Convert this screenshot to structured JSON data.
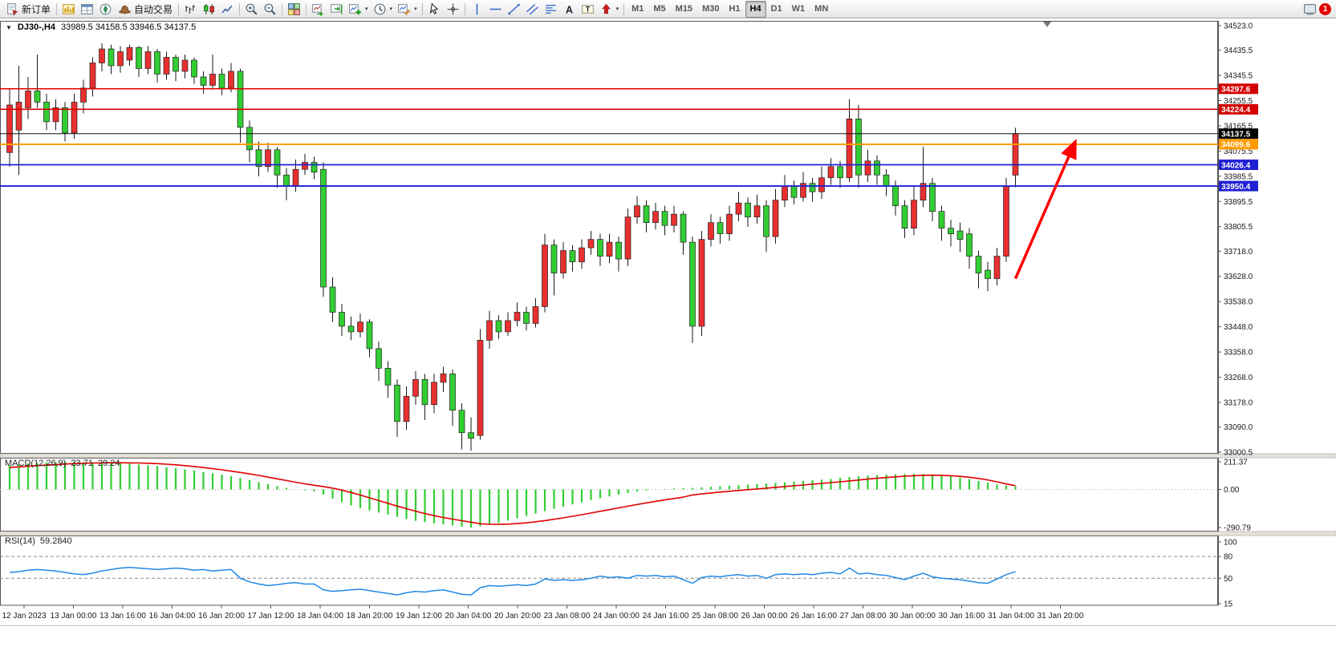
{
  "toolbar": {
    "new_order_label": "新订单",
    "autotrading_label": "自动交易",
    "timeframes": [
      "M1",
      "M5",
      "M15",
      "M30",
      "H1",
      "H4",
      "D1",
      "W1",
      "MN"
    ],
    "active_timeframe": "H4",
    "notification_badge": "1"
  },
  "glyphs": {
    "dropdown": "▾",
    "chart_menu": "▼",
    "text_tool": "A",
    "label_tool": "T"
  },
  "chart": {
    "symbol": "DJ30-,H4",
    "ohlc": "33989.5 34158.5 33946.5 34137.5"
  },
  "price_axis": {
    "labels": [
      "34523.0",
      "34435.5",
      "34345.5",
      "34255.5",
      "34165.5",
      "34075.5",
      "33985.5",
      "33895.5",
      "33805.5",
      "33718.0",
      "33628.0",
      "33538.0",
      "33448.0",
      "33358.0",
      "33268.0",
      "33178.0",
      "33090.0",
      "33000.5"
    ],
    "tags": [
      {
        "value": "34297.6",
        "color": "#d40000"
      },
      {
        "value": "34224.4",
        "color": "#d40000"
      },
      {
        "value": "34137.5",
        "color": "#000000"
      },
      {
        "value": "34099.6",
        "color": "#ff9b00"
      },
      {
        "value": "34026.4",
        "color": "#2121d4"
      },
      {
        "value": "33950.4",
        "color": "#2121d4"
      }
    ]
  },
  "time_axis": {
    "labels": [
      "12 Jan 2023",
      "13 Jan 00:00",
      "13 Jan 16:00",
      "16 Jan 04:00",
      "16 Jan 20:00",
      "17 Jan 12:00",
      "18 Jan 04:00",
      "18 Jan 20:00",
      "19 Jan 12:00",
      "20 Jan 04:00",
      "20 Jan 20:00",
      "23 Jan 08:00",
      "24 Jan 00:00",
      "24 Jan 16:00",
      "25 Jan 08:00",
      "26 Jan 00:00",
      "26 Jan 16:00",
      "27 Jan 08:00",
      "30 Jan 00:00",
      "30 Jan 16:00",
      "31 Jan 04:00",
      "31 Jan 20:00"
    ]
  },
  "macd": {
    "title": "MACD(12,26,9)",
    "value_main": "23.71",
    "value_signal": "29.24",
    "axis_labels": [
      "211.37",
      "0.00",
      "-290.79"
    ]
  },
  "rsi": {
    "title": "RSI(14)",
    "value": "59.2840",
    "axis_labels": [
      "100",
      "80",
      "50",
      "15"
    ]
  },
  "chart_data": {
    "type": "candlestick",
    "symbol": "DJ30-",
    "timeframe": "H4",
    "title": "DJ30-,H4 33989.5 34158.5 33946.5 34137.5",
    "ylim": [
      33000.5,
      34523.0
    ],
    "up_color": "#e93030",
    "down_color": "#32cd32",
    "candles": [
      [
        34070,
        34300,
        34020,
        34240
      ],
      [
        34150,
        34380,
        33990,
        34250
      ],
      [
        34230,
        34340,
        34190,
        34290
      ],
      [
        34290,
        34420,
        34230,
        34250
      ],
      [
        34250,
        34280,
        34150,
        34180
      ],
      [
        34180,
        34260,
        34150,
        34230
      ],
      [
        34230,
        34250,
        34110,
        34140
      ],
      [
        34140,
        34280,
        34120,
        34250
      ],
      [
        34250,
        34330,
        34210,
        34300
      ],
      [
        34300,
        34410,
        34270,
        34390
      ],
      [
        34390,
        34460,
        34360,
        34440
      ],
      [
        34440,
        34455,
        34350,
        34380
      ],
      [
        34380,
        34450,
        34355,
        34430
      ],
      [
        34400,
        34455,
        34380,
        34445
      ],
      [
        34445,
        34450,
        34340,
        34370
      ],
      [
        34370,
        34450,
        34350,
        34430
      ],
      [
        34430,
        34440,
        34320,
        34350
      ],
      [
        34350,
        34430,
        34330,
        34410
      ],
      [
        34410,
        34420,
        34325,
        34360
      ],
      [
        34360,
        34420,
        34335,
        34400
      ],
      [
        34400,
        34410,
        34315,
        34340
      ],
      [
        34340,
        34360,
        34280,
        34310
      ],
      [
        34310,
        34420,
        34295,
        34350
      ],
      [
        34350,
        34370,
        34275,
        34300
      ],
      [
        34300,
        34390,
        34285,
        34360
      ],
      [
        34360,
        34370,
        34105,
        34160
      ],
      [
        34160,
        34185,
        34035,
        34080
      ],
      [
        34080,
        34110,
        33985,
        34020
      ],
      [
        34020,
        34105,
        34000,
        34080
      ],
      [
        34080,
        34090,
        33945,
        33990
      ],
      [
        33990,
        34015,
        33900,
        33950
      ],
      [
        33950,
        34045,
        33930,
        34010
      ],
      [
        34010,
        34065,
        33990,
        34035
      ],
      [
        34035,
        34055,
        33975,
        34000
      ],
      [
        34010,
        34035,
        33555,
        33590
      ],
      [
        33590,
        33625,
        33465,
        33500
      ],
      [
        33500,
        33530,
        33415,
        33450
      ],
      [
        33450,
        33485,
        33400,
        33430
      ],
      [
        33430,
        33495,
        33410,
        33465
      ],
      [
        33465,
        33475,
        33340,
        33370
      ],
      [
        33370,
        33395,
        33255,
        33300
      ],
      [
        33300,
        33325,
        33195,
        33240
      ],
      [
        33240,
        33260,
        33055,
        33110
      ],
      [
        33110,
        33235,
        33080,
        33200
      ],
      [
        33200,
        33290,
        33170,
        33260
      ],
      [
        33260,
        33280,
        33115,
        33170
      ],
      [
        33170,
        33280,
        33140,
        33250
      ],
      [
        33250,
        33305,
        33215,
        33280
      ],
      [
        33280,
        33295,
        33095,
        33150
      ],
      [
        33150,
        33175,
        33010,
        33070
      ],
      [
        33070,
        33125,
        33005,
        33050
      ],
      [
        33060,
        33440,
        33045,
        33400
      ],
      [
        33400,
        33505,
        33370,
        33470
      ],
      [
        33470,
        33490,
        33405,
        33430
      ],
      [
        33430,
        33500,
        33415,
        33470
      ],
      [
        33470,
        33535,
        33450,
        33500
      ],
      [
        33500,
        33520,
        33435,
        33460
      ],
      [
        33460,
        33550,
        33445,
        33520
      ],
      [
        33520,
        33780,
        33500,
        33740
      ],
      [
        33740,
        33760,
        33560,
        33640
      ],
      [
        33640,
        33750,
        33620,
        33720
      ],
      [
        33720,
        33740,
        33645,
        33680
      ],
      [
        33680,
        33760,
        33655,
        33730
      ],
      [
        33730,
        33790,
        33705,
        33760
      ],
      [
        33760,
        33780,
        33665,
        33700
      ],
      [
        33700,
        33780,
        33675,
        33750
      ],
      [
        33750,
        33770,
        33645,
        33690
      ],
      [
        33690,
        33870,
        33665,
        33840
      ],
      [
        33840,
        33915,
        33815,
        33880
      ],
      [
        33880,
        33900,
        33785,
        33820
      ],
      [
        33820,
        33890,
        33795,
        33860
      ],
      [
        33860,
        33880,
        33775,
        33810
      ],
      [
        33810,
        33880,
        33785,
        33850
      ],
      [
        33850,
        33860,
        33705,
        33750
      ],
      [
        33750,
        33770,
        33390,
        33450
      ],
      [
        33450,
        33790,
        33415,
        33760
      ],
      [
        33760,
        33850,
        33735,
        33820
      ],
      [
        33820,
        33840,
        33745,
        33780
      ],
      [
        33780,
        33880,
        33755,
        33850
      ],
      [
        33850,
        33930,
        33825,
        33890
      ],
      [
        33890,
        33910,
        33805,
        33840
      ],
      [
        33840,
        33920,
        33815,
        33880
      ],
      [
        33880,
        33900,
        33715,
        33770
      ],
      [
        33770,
        33940,
        33745,
        33900
      ],
      [
        33900,
        33990,
        33875,
        33950
      ],
      [
        33950,
        33970,
        33885,
        33910
      ],
      [
        33910,
        34000,
        33895,
        33960
      ],
      [
        33960,
        33980,
        33895,
        33930
      ],
      [
        33930,
        34020,
        33905,
        33980
      ],
      [
        33980,
        34050,
        33955,
        34020
      ],
      [
        34020,
        34040,
        33945,
        33980
      ],
      [
        33980,
        34260,
        33965,
        34190
      ],
      [
        34190,
        34240,
        33945,
        33990
      ],
      [
        33990,
        34080,
        33965,
        34040
      ],
      [
        34040,
        34060,
        33955,
        33990
      ],
      [
        33990,
        34010,
        33915,
        33950
      ],
      [
        33950,
        33970,
        33845,
        33880
      ],
      [
        33880,
        33900,
        33765,
        33800
      ],
      [
        33800,
        33950,
        33775,
        33900
      ],
      [
        33900,
        34090,
        33875,
        33960
      ],
      [
        33960,
        33980,
        33825,
        33860
      ],
      [
        33860,
        33880,
        33755,
        33800
      ],
      [
        33800,
        33830,
        33735,
        33780
      ],
      [
        33790,
        33820,
        33715,
        33760
      ],
      [
        33780,
        33800,
        33655,
        33700
      ],
      [
        33700,
        33720,
        33585,
        33640
      ],
      [
        33650,
        33680,
        33575,
        33620
      ],
      [
        33620,
        33730,
        33595,
        33700
      ],
      [
        33700,
        33980,
        33680,
        33950
      ],
      [
        33989.5,
        34158.5,
        33946.5,
        34137.5
      ]
    ],
    "hlines": [
      {
        "price": 34297.6,
        "color": "#e00000",
        "width": 1.6
      },
      {
        "price": 34224.4,
        "color": "#e00000",
        "width": 1.6
      },
      {
        "price": 34137.5,
        "color": "#111111",
        "width": 1
      },
      {
        "price": 34099.6,
        "color": "#ff9b00",
        "width": 2
      },
      {
        "price": 34026.4,
        "color": "#2121d4",
        "width": 1.8
      },
      {
        "price": 33950.4,
        "color": "#2121d4",
        "width": 1.8
      }
    ],
    "indicators": [
      {
        "type": "MACD",
        "params": [
          12,
          26,
          9
        ],
        "range": [
          -290.79,
          211.37
        ],
        "histogram_color": "#32cd32",
        "signal_color": "#e00000",
        "histogram": [
          185,
          192,
          198,
          203,
          206,
          208,
          210,
          211,
          209,
          207,
          205,
          203,
          200,
          196,
          191,
          185,
          178,
          170,
          162,
          153,
          144,
          134,
          124,
          113,
          102,
          88,
          72,
          56,
          40,
          25,
          12,
          2,
          -6,
          -15,
          -40,
          -70,
          -98,
          -122,
          -143,
          -160,
          -176,
          -192,
          -210,
          -226,
          -240,
          -250,
          -258,
          -266,
          -275,
          -284,
          -291,
          -282,
          -270,
          -255,
          -238,
          -220,
          -202,
          -184,
          -166,
          -148,
          -131,
          -114,
          -98,
          -82,
          -67,
          -53,
          -40,
          -28,
          -17,
          -8,
          -2,
          3,
          7,
          10,
          12,
          16,
          20,
          24,
          28,
          32,
          36,
          40,
          45,
          50,
          55,
          60,
          65,
          70,
          75,
          80,
          88,
          95,
          101,
          106,
          110,
          113,
          116,
          118,
          120,
          118,
          114,
          108,
          100,
          90,
          78,
          65,
          52,
          38,
          29,
          24
        ],
        "signal": [
          168,
          172,
          177,
          182,
          186,
          190,
          194,
          197,
          200,
          202,
          203,
          204,
          204,
          203,
          202,
          200,
          197,
          193,
          188,
          182,
          175,
          167,
          159,
          150,
          140,
          130,
          119,
          107,
          94,
          81,
          68,
          55,
          43,
          32,
          22,
          10,
          -5,
          -23,
          -43,
          -64,
          -85,
          -106,
          -127,
          -147,
          -166,
          -184,
          -200,
          -214,
          -227,
          -239,
          -250,
          -262,
          -266,
          -267,
          -265,
          -261,
          -255,
          -247,
          -238,
          -228,
          -217,
          -205,
          -193,
          -180,
          -167,
          -154,
          -141,
          -128,
          -115,
          -103,
          -91,
          -80,
          -69,
          -59,
          -42,
          -34,
          -27,
          -20,
          -14,
          -8,
          -2,
          4,
          10,
          16,
          22,
          28,
          34,
          40,
          46,
          52,
          58,
          65,
          72,
          79,
          85,
          91,
          96,
          101,
          105,
          108,
          109,
          108,
          105,
          100,
          93,
          84,
          73,
          58,
          42,
          29
        ]
      },
      {
        "type": "RSI",
        "params": [
          14
        ],
        "range": [
          15,
          100
        ],
        "color": "#2288e6",
        "levels": [
          80,
          50
        ],
        "values": [
          58,
          59,
          61,
          62,
          61,
          60,
          58,
          56,
          55,
          57,
          60,
          62,
          64,
          65,
          64,
          63,
          62,
          63,
          64,
          63,
          61,
          62,
          60,
          61,
          62,
          50,
          45,
          42,
          40,
          41,
          43,
          44,
          42,
          42,
          34,
          32,
          33,
          34,
          35,
          33,
          31,
          29,
          27,
          30,
          32,
          31,
          33,
          34,
          31,
          28,
          27,
          37,
          40,
          39,
          40,
          41,
          40,
          42,
          49,
          47,
          48,
          47,
          48,
          50,
          53,
          51,
          52,
          50,
          54,
          53,
          54,
          52,
          53,
          48,
          43,
          51,
          53,
          52,
          54,
          55,
          53,
          54,
          50,
          55,
          56,
          55,
          56,
          55,
          57,
          58,
          56,
          64,
          56,
          57,
          55,
          54,
          51,
          48,
          53,
          57,
          52,
          50,
          49,
          48,
          46,
          44,
          43,
          49,
          55,
          59.28
        ]
      }
    ],
    "annotations": [
      {
        "type": "arrow",
        "from_bar": 109,
        "from_price": 33620,
        "to_bar": 115.5,
        "to_price": 34110,
        "color": "#ff0000"
      }
    ]
  }
}
